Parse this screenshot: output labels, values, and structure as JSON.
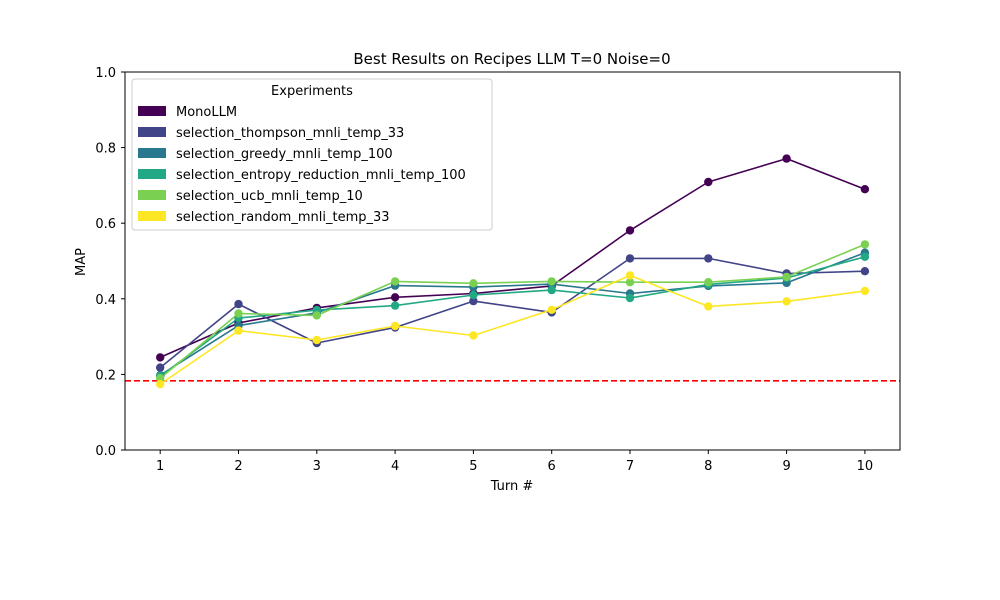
{
  "chart_data": {
    "type": "line",
    "title": "Best Results on Recipes LLM T=0 Noise=0",
    "xlabel": "Turn #",
    "ylabel": "MAP",
    "x": [
      1,
      2,
      3,
      4,
      5,
      6,
      7,
      8,
      9,
      10
    ],
    "xticks": [
      "1",
      "2",
      "3",
      "4",
      "5",
      "6",
      "7",
      "8",
      "9",
      "10"
    ],
    "ylim": [
      0.0,
      1.0
    ],
    "yticks": [
      "0.0",
      "0.2",
      "0.4",
      "0.6",
      "0.8",
      "1.0"
    ],
    "grid": false,
    "legend": {
      "title": "Experiments",
      "placement": "upper-left"
    },
    "reference_line": {
      "y": 0.183,
      "color": "#ff0000",
      "style": "dashed"
    },
    "series": [
      {
        "name": "MonoLLM",
        "color": "#440154",
        "values": [
          0.245,
          0.336,
          0.376,
          0.404,
          0.414,
          0.434,
          0.581,
          0.709,
          0.771,
          0.69
        ]
      },
      {
        "name": "selection_thompson_mnli_temp_33",
        "color": "#414487",
        "values": [
          0.218,
          0.386,
          0.283,
          0.324,
          0.394,
          0.364,
          0.507,
          0.507,
          0.467,
          0.473
        ]
      },
      {
        "name": "selection_greedy_mnli_temp_100",
        "color": "#2a788e",
        "values": [
          0.198,
          0.329,
          0.363,
          0.435,
          0.431,
          0.439,
          0.414,
          0.434,
          0.442,
          0.522
        ]
      },
      {
        "name": "selection_entropy_reduction_mnli_temp_100",
        "color": "#22a884",
        "values": [
          0.195,
          0.349,
          0.37,
          0.382,
          0.41,
          0.423,
          0.402,
          0.438,
          0.455,
          0.511
        ]
      },
      {
        "name": "selection_ucb_mnli_temp_10",
        "color": "#7ad151",
        "values": [
          0.19,
          0.361,
          0.356,
          0.446,
          0.441,
          0.446,
          0.444,
          0.444,
          0.458,
          0.544
        ]
      },
      {
        "name": "selection_random_mnli_temp_33",
        "color": "#fde725",
        "values": [
          0.174,
          0.316,
          0.291,
          0.328,
          0.303,
          0.371,
          0.462,
          0.38,
          0.393,
          0.421
        ]
      }
    ]
  }
}
